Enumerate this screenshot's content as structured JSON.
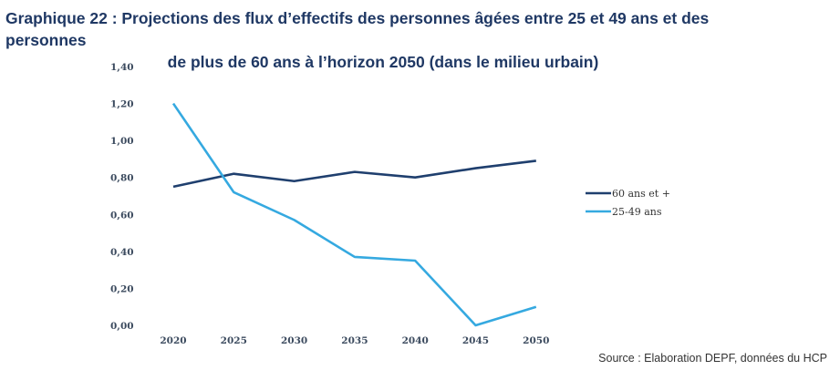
{
  "title_line1": "Graphique 22 : Projections des flux d’effectifs des personnes âgées entre 25 et 49 ans et des personnes",
  "title_line2": "de plus de 60 ans à l’horizon 2050 (dans le milieu urbain)",
  "source": "Source : Elaboration DEPF, données du HCP",
  "chart_data": {
    "type": "line",
    "title": "Graphique 22 : Projections des flux d’effectifs des personnes âgées entre 25 et 49 ans et des personnes de plus de 60 ans à l’horizon 2050 (dans le milieu urbain)",
    "categories": [
      "2020",
      "2025",
      "2030",
      "2035",
      "2040",
      "2045",
      "2050"
    ],
    "y_ticks": [
      "0,00",
      "0,20",
      "0,40",
      "0,60",
      "0,80",
      "1,00",
      "1,20",
      "1,40"
    ],
    "ylim": [
      0,
      1.4
    ],
    "grid": false,
    "legend_position": "right",
    "series": [
      {
        "name": "60 ans et +",
        "color": "#1f3f6e",
        "values": [
          0.75,
          0.82,
          0.78,
          0.83,
          0.8,
          0.85,
          0.89
        ]
      },
      {
        "name": "25-49 ans",
        "color": "#35a9e0",
        "values": [
          1.2,
          0.72,
          0.57,
          0.37,
          0.35,
          0.0,
          0.1
        ]
      }
    ]
  }
}
